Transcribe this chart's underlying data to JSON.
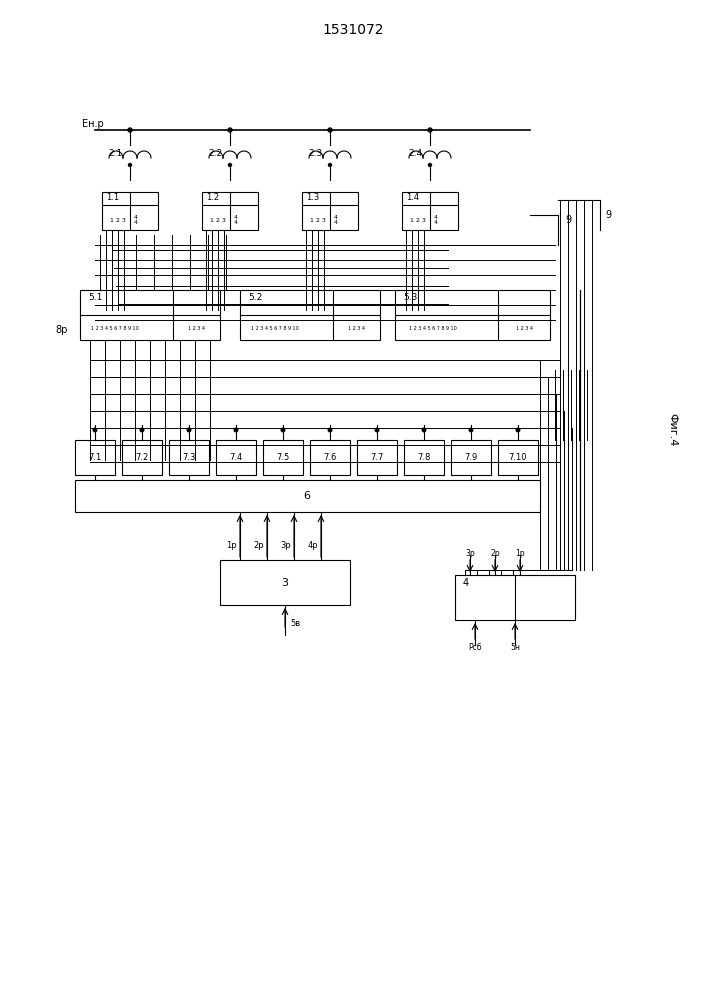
{
  "title": "1531072",
  "fig_label": "Фиг.4",
  "bg_color": "#ffffff",
  "line_color": "#000000",
  "coil_labels": [
    "2.1",
    "2.2",
    "2.3",
    "2.4"
  ],
  "block1_labels": [
    "1.1",
    "1.2",
    "1.3",
    "1.4"
  ],
  "block5_labels": [
    "5.1",
    "5.2",
    "5.3"
  ],
  "block7_labels": [
    "7.1",
    "7.2",
    "7.3",
    "7.4",
    "7.5",
    "7.6",
    "7.7",
    "7.8",
    "7.9",
    "7.10"
  ],
  "block6_label": "6",
  "block3_label": "3",
  "block4_label": "4",
  "label_9": "9",
  "label_8p": "8р",
  "label_Enp": "Eн.р",
  "signal_labels_3": [
    "1р",
    "2р",
    "3р",
    "4р"
  ],
  "signal_label_fb": "5в",
  "signal_labels_4": [
    "3р",
    "2р",
    "1р"
  ],
  "signal_labels_4b": [
    "Рсб",
    "5н"
  ]
}
